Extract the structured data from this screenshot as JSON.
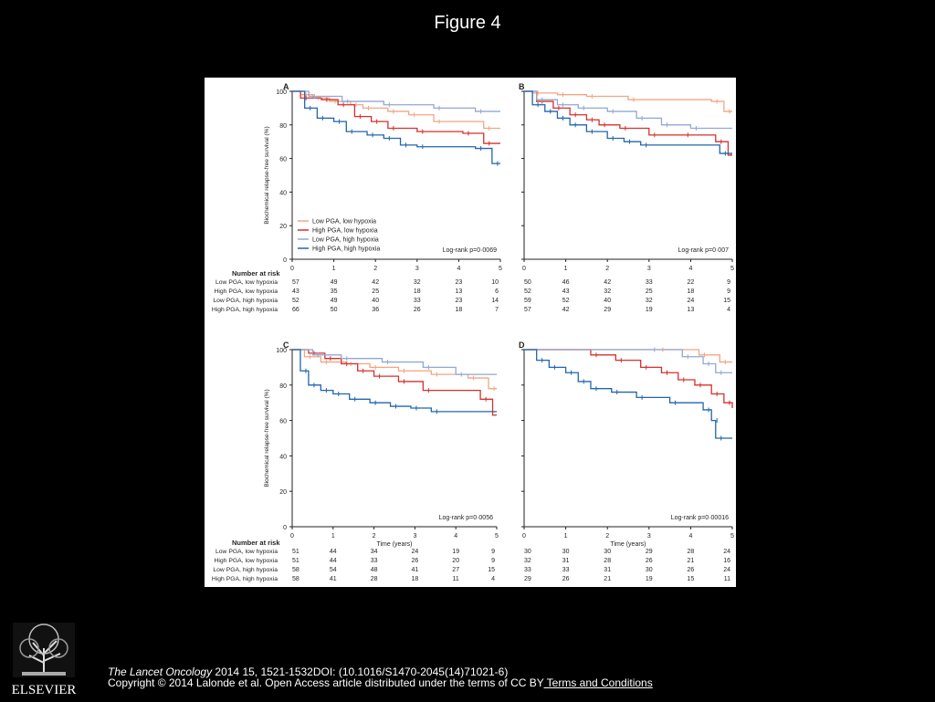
{
  "slide": {
    "title": "Figure 4",
    "publisher": "ELSEVIER",
    "citation_journal": "The Lancet Oncology",
    "citation_rest": " 2014 15, 1521-1532DOI: (10.1016/S1470-2045(14)71021-6)",
    "copyright_text": "Copyright © 2014 Lalonde et al. Open Access article distributed under the terms of CC BY",
    "copyright_link": " Terms and Conditions"
  },
  "colors": {
    "low_low": "#f4a582",
    "high_low": "#d6302c",
    "low_high": "#92a8d1",
    "high_high": "#2166ac",
    "axis": "#231f20"
  },
  "chart_data": [
    {
      "panel": "A",
      "type": "line",
      "ylabel": "Biochemical relapse-free survival (%)",
      "xlabel": "",
      "xlim": [
        0,
        5
      ],
      "ylim": [
        0,
        100
      ],
      "xticks": [
        "0",
        "1",
        "2",
        "3",
        "4",
        "5"
      ],
      "yticks": [
        "0",
        "20",
        "40",
        "60",
        "80",
        "100"
      ],
      "annotation": "Log-rank p=0·0069",
      "legend": [
        "Low PGA, low hypoxia",
        "High PGA, low hypoxia",
        "Low PGA, high hypoxia",
        "High PGA, high hypoxia"
      ],
      "series": [
        {
          "name": "Low PGA, low hypoxia",
          "x": [
            0,
            0.2,
            0.5,
            0.9,
            1.4,
            1.7,
            2.3,
            2.8,
            3.4,
            4.6,
            5
          ],
          "y": [
            100,
            98,
            96,
            94,
            92,
            90,
            88,
            86,
            82,
            78,
            78
          ]
        },
        {
          "name": "High PGA, low hypoxia",
          "x": [
            0,
            0.2,
            0.7,
            1.1,
            1.5,
            1.9,
            2.3,
            3.0,
            4.1,
            4.6,
            5
          ],
          "y": [
            100,
            96,
            95,
            92,
            85,
            82,
            78,
            76,
            75,
            69,
            69
          ]
        },
        {
          "name": "Low PGA, high hypoxia",
          "x": [
            0,
            0.4,
            1.2,
            2.2,
            3.4,
            4.4,
            5
          ],
          "y": [
            100,
            97,
            94,
            92,
            90,
            88,
            88
          ]
        },
        {
          "name": "High PGA, high hypoxia",
          "x": [
            0,
            0.3,
            0.6,
            1.0,
            1.3,
            1.8,
            2.2,
            2.6,
            3.0,
            4.4,
            4.8,
            5
          ],
          "y": [
            100,
            90,
            84,
            82,
            76,
            74,
            72,
            68,
            67,
            66,
            57,
            57
          ]
        }
      ],
      "risk_table": {
        "header": "Number at risk",
        "rows": [
          {
            "label": "Low PGA, low hypoxia",
            "values": [
              "57",
              "49",
              "42",
              "32",
              "23",
              "10"
            ]
          },
          {
            "label": "High PGA, low hypoxia",
            "values": [
              "43",
              "35",
              "25",
              "18",
              "13",
              "6"
            ]
          },
          {
            "label": "Low PGA, high hypoxia",
            "values": [
              "52",
              "49",
              "40",
              "33",
              "23",
              "14"
            ]
          },
          {
            "label": "High PGA, high hypoxia",
            "values": [
              "66",
              "50",
              "36",
              "26",
              "18",
              "7"
            ]
          }
        ]
      }
    },
    {
      "panel": "B",
      "type": "line",
      "ylabel": "",
      "xlabel": "",
      "xlim": [
        0,
        5
      ],
      "ylim": [
        0,
        100
      ],
      "xticks": [
        "0",
        "1",
        "2",
        "3",
        "4",
        "5"
      ],
      "yticks": [],
      "annotation": "Log-rank p=0·007",
      "series": [
        {
          "name": "Low PGA, low hypoxia",
          "x": [
            0,
            0.2,
            0.8,
            1.5,
            2.5,
            4.5,
            4.8,
            5
          ],
          "y": [
            100,
            99,
            98,
            97,
            95,
            94,
            88,
            88
          ]
        },
        {
          "name": "High PGA, low hypoxia",
          "x": [
            0,
            0.3,
            0.7,
            1.1,
            1.5,
            1.8,
            2.3,
            3.0,
            3.8,
            4.6,
            4.9,
            5
          ],
          "y": [
            100,
            94,
            90,
            86,
            83,
            80,
            78,
            74,
            74,
            70,
            62,
            62
          ]
        },
        {
          "name": "Low PGA, high hypoxia",
          "x": [
            0,
            0.3,
            0.8,
            1.3,
            2.0,
            2.7,
            3.3,
            4.0,
            5
          ],
          "y": [
            100,
            95,
            92,
            90,
            88,
            84,
            80,
            78,
            78
          ]
        },
        {
          "name": "High PGA, high hypoxia",
          "x": [
            0,
            0.2,
            0.5,
            0.8,
            1.1,
            1.5,
            2.0,
            2.4,
            2.8,
            4.7,
            5
          ],
          "y": [
            100,
            92,
            88,
            84,
            80,
            76,
            72,
            70,
            68,
            63,
            63
          ]
        }
      ],
      "risk_table": {
        "rows": [
          {
            "label": "Low PGA, low hypoxia",
            "values": [
              "50",
              "46",
              "42",
              "33",
              "22",
              "9"
            ]
          },
          {
            "label": "High PGA, low hypoxia",
            "values": [
              "52",
              "43",
              "32",
              "25",
              "18",
              "9"
            ]
          },
          {
            "label": "Low PGA, high hypoxia",
            "values": [
              "59",
              "52",
              "40",
              "32",
              "24",
              "15"
            ]
          },
          {
            "label": "High PGA, high hypoxia",
            "values": [
              "57",
              "42",
              "29",
              "19",
              "13",
              "4"
            ]
          }
        ]
      }
    },
    {
      "panel": "C",
      "type": "line",
      "ylabel": "Biochemical relapse-free survival (%)",
      "xlabel": "Time (years)",
      "xlim": [
        0,
        5
      ],
      "ylim": [
        0,
        100
      ],
      "xticks": [
        "0",
        "1",
        "2",
        "3",
        "4",
        "5"
      ],
      "yticks": [
        "0",
        "20",
        "40",
        "60",
        "80",
        "100"
      ],
      "annotation": "Log-rank p=0·0056",
      "series": [
        {
          "name": "Low PGA, low hypoxia",
          "x": [
            0,
            0.3,
            0.7,
            1.3,
            1.9,
            2.6,
            3.4,
            4.3,
            4.8,
            5
          ],
          "y": [
            100,
            96,
            93,
            92,
            90,
            88,
            86,
            84,
            78,
            78
          ]
        },
        {
          "name": "High PGA, low hypoxia",
          "x": [
            0,
            0.4,
            0.8,
            1.2,
            1.6,
            2.0,
            2.6,
            3.2,
            4.6,
            4.9,
            5
          ],
          "y": [
            100,
            98,
            95,
            92,
            88,
            85,
            82,
            77,
            72,
            63,
            63
          ]
        },
        {
          "name": "Low PGA, high hypoxia",
          "x": [
            0,
            0.5,
            1.2,
            2.2,
            3.2,
            4.0,
            5
          ],
          "y": [
            100,
            97,
            95,
            93,
            90,
            86,
            86
          ]
        },
        {
          "name": "High PGA, high hypoxia",
          "x": [
            0,
            0.2,
            0.4,
            0.7,
            1.0,
            1.4,
            1.9,
            2.4,
            2.9,
            3.4,
            5
          ],
          "y": [
            100,
            88,
            80,
            77,
            75,
            72,
            70,
            68,
            67,
            65,
            65
          ]
        }
      ],
      "risk_table": {
        "header": "Number at risk",
        "rows": [
          {
            "label": "Low PGA, low hypoxia",
            "values": [
              "51",
              "44",
              "34",
              "24",
              "19",
              "9"
            ]
          },
          {
            "label": "High PGA, low hypoxia",
            "values": [
              "51",
              "44",
              "33",
              "26",
              "20",
              "9"
            ]
          },
          {
            "label": "Low PGA, high hypoxia",
            "values": [
              "58",
              "54",
              "48",
              "41",
              "27",
              "15"
            ]
          },
          {
            "label": "High PGA, high hypoxia",
            "values": [
              "58",
              "41",
              "28",
              "18",
              "11",
              "4"
            ]
          }
        ]
      }
    },
    {
      "panel": "D",
      "type": "line",
      "ylabel": "",
      "xlabel": "Time (years)",
      "xlim": [
        0,
        5
      ],
      "ylim": [
        0,
        100
      ],
      "xticks": [
        "0",
        "1",
        "2",
        "3",
        "4",
        "5"
      ],
      "yticks": [],
      "annotation": "Log-rank p=0·00016",
      "series": [
        {
          "name": "Low PGA, low hypoxia",
          "x": [
            0,
            3.2,
            4.2,
            4.7,
            5
          ],
          "y": [
            100,
            100,
            97,
            93,
            93
          ]
        },
        {
          "name": "High PGA, low hypoxia",
          "x": [
            0,
            1.6,
            2.2,
            2.8,
            3.3,
            3.7,
            4.1,
            4.5,
            4.8,
            5
          ],
          "y": [
            100,
            97,
            94,
            90,
            87,
            83,
            80,
            75,
            70,
            67
          ]
        },
        {
          "name": "Low PGA, high hypoxia",
          "x": [
            0,
            3.0,
            3.8,
            4.3,
            4.6,
            5
          ],
          "y": [
            100,
            100,
            96,
            92,
            87,
            87
          ]
        },
        {
          "name": "High PGA, high hypoxia",
          "x": [
            0,
            0.3,
            0.6,
            1.0,
            1.3,
            1.6,
            2.1,
            2.7,
            3.5,
            4.3,
            4.5,
            4.6,
            5
          ],
          "y": [
            100,
            94,
            90,
            87,
            82,
            78,
            76,
            73,
            70,
            66,
            60,
            50,
            50
          ]
        }
      ],
      "risk_table": {
        "rows": [
          {
            "label": "Low PGA, low hypoxia",
            "values": [
              "30",
              "30",
              "30",
              "29",
              "28",
              "24"
            ]
          },
          {
            "label": "High PGA, low hypoxia",
            "values": [
              "32",
              "31",
              "28",
              "26",
              "21",
              "16"
            ]
          },
          {
            "label": "Low PGA, high hypoxia",
            "values": [
              "33",
              "33",
              "31",
              "30",
              "26",
              "24"
            ]
          },
          {
            "label": "High PGA, high hypoxia",
            "values": [
              "29",
              "26",
              "21",
              "19",
              "15",
              "11"
            ]
          }
        ]
      }
    }
  ]
}
